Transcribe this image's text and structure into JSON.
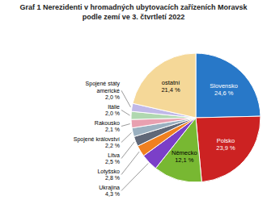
{
  "chart_data": {
    "type": "pie",
    "title": "Graf 1 Nerezidenti v hromadných ubytovacích zařízeních Moravsk",
    "subtitle": "podle zemí ve 3. čtvrtletí 2022",
    "categories": [
      "Slovensko",
      "Polsko",
      "Německo",
      "Ukrajina",
      "Lotyšsko",
      "Litva",
      "Spojené království",
      "Rakousko",
      "Itálie",
      "Spojené státy\namerické",
      "ostatní"
    ],
    "values": [
      24.6,
      23.9,
      12.1,
      4.3,
      2.8,
      2.5,
      2.2,
      2.1,
      2.0,
      2.0,
      21.4
    ],
    "value_labels": [
      "24,6 %",
      "23,9 %",
      "12,1 %",
      "4,3 %",
      "2,8 %",
      "2,5 %",
      "2,2 %",
      "2,1 %",
      "2,0 %",
      "2,0 %",
      "21,4 %"
    ],
    "colors": [
      "#2878c8",
      "#cc2222",
      "#78b832",
      "#7b3fc8",
      "#f08020",
      "#606878",
      "#9ab0c0",
      "#e8a0b0",
      "#b0d8b0",
      "#c0b8e8",
      "#f5d898"
    ],
    "data_labels": true
  }
}
